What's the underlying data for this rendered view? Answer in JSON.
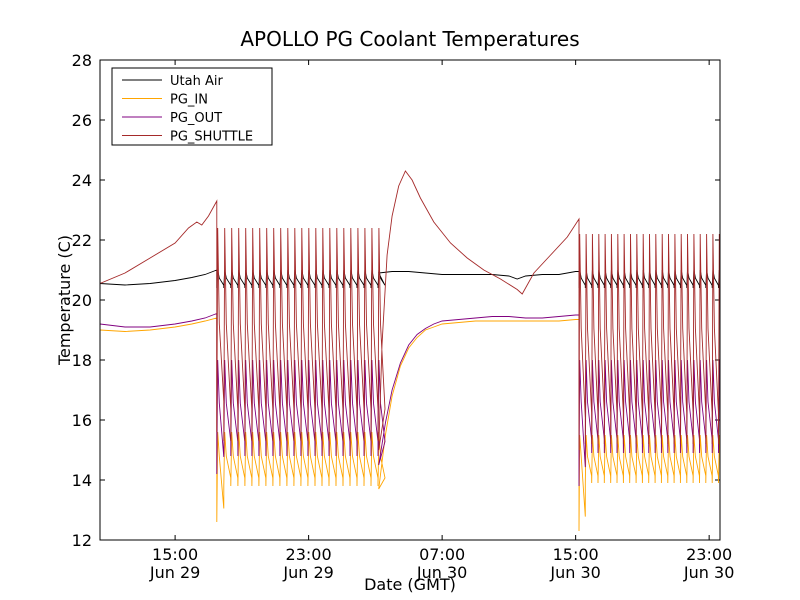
{
  "chart_data": {
    "type": "line",
    "title": "APOLLO PG Coolant Temperatures",
    "xlabel": "Date (GMT)",
    "ylabel": "Temperature (C)",
    "ylim": [
      12,
      28
    ],
    "yticks": [
      12,
      14,
      16,
      18,
      20,
      22,
      24,
      26,
      28
    ],
    "xlim_hours": [
      10.5,
      47.65
    ],
    "xticks": [
      {
        "hour": 15,
        "time": "15:00",
        "date": "Jun 29"
      },
      {
        "hour": 23,
        "time": "23:00",
        "date": "Jun 29"
      },
      {
        "hour": 31,
        "time": "07:00",
        "date": "Jun 30"
      },
      {
        "hour": 39,
        "time": "15:00",
        "date": "Jun 30"
      },
      {
        "hour": 47,
        "time": "23:00",
        "date": "Jun 30"
      }
    ],
    "legend_position": "top-left",
    "series": [
      {
        "name": "Utah Air",
        "color": "#000000",
        "points": [
          [
            10.5,
            20.55
          ],
          [
            12.0,
            20.5
          ],
          [
            13.5,
            20.55
          ],
          [
            15.0,
            20.65
          ],
          [
            16.0,
            20.75
          ],
          [
            16.8,
            20.85
          ],
          [
            17.5,
            21.0
          ]
        ]
      },
      {
        "name": "PG_IN",
        "color": "#ffa500",
        "points": [
          [
            10.5,
            19.0
          ],
          [
            12.0,
            18.95
          ],
          [
            13.5,
            19.0
          ],
          [
            15.0,
            19.1
          ],
          [
            16.0,
            19.2
          ],
          [
            16.8,
            19.3
          ],
          [
            17.5,
            19.4
          ]
        ]
      },
      {
        "name": "PG_OUT",
        "color": "#800080",
        "points": [
          [
            10.5,
            19.2
          ],
          [
            12.0,
            19.1
          ],
          [
            13.5,
            19.1
          ],
          [
            15.0,
            19.2
          ],
          [
            16.0,
            19.3
          ],
          [
            16.8,
            19.4
          ],
          [
            17.5,
            19.55
          ]
        ]
      },
      {
        "name": "PG_SHUTTLE",
        "color": "#a52a2a",
        "points": [
          [
            10.5,
            20.55
          ],
          [
            12.0,
            20.9
          ],
          [
            13.5,
            21.4
          ],
          [
            15.0,
            21.9
          ],
          [
            15.8,
            22.4
          ],
          [
            16.3,
            22.6
          ],
          [
            16.6,
            22.5
          ],
          [
            17.0,
            22.8
          ],
          [
            17.5,
            23.3
          ]
        ]
      }
    ],
    "series_segments": {
      "Utah Air": {
        "cycling_1": {
          "start": 17.5,
          "end": 27.2,
          "period": 0.42,
          "low": 20.4,
          "high": 21.0
        },
        "steady": [
          [
            27.2,
            20.9
          ],
          [
            28.0,
            20.95
          ],
          [
            29.0,
            20.95
          ],
          [
            30.0,
            20.9
          ],
          [
            31.0,
            20.85
          ],
          [
            32.0,
            20.85
          ],
          [
            33.0,
            20.85
          ],
          [
            34.0,
            20.85
          ],
          [
            35.0,
            20.8
          ],
          [
            35.5,
            20.7
          ],
          [
            36.0,
            20.8
          ],
          [
            37.0,
            20.85
          ],
          [
            38.0,
            20.85
          ],
          [
            39.0,
            20.95
          ],
          [
            39.2,
            20.95
          ]
        ],
        "cycling_2": {
          "start": 39.2,
          "end": 47.65,
          "period": 0.38,
          "low": 20.4,
          "high": 21.0
        }
      },
      "PG_IN": {
        "cycling_1": {
          "start": 17.5,
          "end": 27.2,
          "period": 0.42,
          "low": 13.8,
          "high": 15.6,
          "first_low": 12.6
        },
        "recovery": [
          [
            27.2,
            13.7
          ],
          [
            27.6,
            15.5
          ],
          [
            28.0,
            16.8
          ],
          [
            28.5,
            17.8
          ],
          [
            29.0,
            18.4
          ],
          [
            29.5,
            18.75
          ],
          [
            30.0,
            19.0
          ],
          [
            30.5,
            19.1
          ],
          [
            31.0,
            19.2
          ],
          [
            32.0,
            19.25
          ],
          [
            33.0,
            19.3
          ],
          [
            34.0,
            19.3
          ],
          [
            35.0,
            19.3
          ],
          [
            36.0,
            19.3
          ],
          [
            37.0,
            19.3
          ],
          [
            38.0,
            19.3
          ],
          [
            39.0,
            19.35
          ],
          [
            39.2,
            19.35
          ]
        ],
        "cycling_2": {
          "start": 39.2,
          "end": 47.65,
          "period": 0.38,
          "low": 13.9,
          "high": 15.5,
          "first_low": 12.3
        }
      },
      "PG_OUT": {
        "cycling_1": {
          "start": 17.5,
          "end": 27.2,
          "period": 0.42,
          "low": 14.8,
          "high": 18.0,
          "first_low": 14.2
        },
        "recovery": [
          [
            27.2,
            14.5
          ],
          [
            27.6,
            15.9
          ],
          [
            28.0,
            17.0
          ],
          [
            28.5,
            17.9
          ],
          [
            29.0,
            18.5
          ],
          [
            29.5,
            18.85
          ],
          [
            30.0,
            19.05
          ],
          [
            30.5,
            19.2
          ],
          [
            31.0,
            19.3
          ],
          [
            32.0,
            19.35
          ],
          [
            33.0,
            19.4
          ],
          [
            34.0,
            19.45
          ],
          [
            35.0,
            19.45
          ],
          [
            36.0,
            19.4
          ],
          [
            37.0,
            19.4
          ],
          [
            38.0,
            19.45
          ],
          [
            39.0,
            19.5
          ],
          [
            39.2,
            19.5
          ]
        ],
        "cycling_2": {
          "start": 39.2,
          "end": 47.65,
          "period": 0.38,
          "low": 14.9,
          "high": 18.0,
          "first_low": 13.8
        }
      },
      "PG_SHUTTLE": {
        "cycling_1": {
          "start": 17.5,
          "end": 27.2,
          "period": 0.42,
          "low": 15.3,
          "high": 22.4,
          "first_low": 15.6
        },
        "peak_decay": [
          [
            27.2,
            15.0
          ],
          [
            27.4,
            18.5
          ],
          [
            27.7,
            21.5
          ],
          [
            28.0,
            22.8
          ],
          [
            28.4,
            23.8
          ],
          [
            28.8,
            24.3
          ],
          [
            29.2,
            24.0
          ],
          [
            29.7,
            23.4
          ],
          [
            30.5,
            22.6
          ],
          [
            31.5,
            21.9
          ],
          [
            32.5,
            21.4
          ],
          [
            33.5,
            21.0
          ],
          [
            34.5,
            20.7
          ],
          [
            35.5,
            20.35
          ],
          [
            35.8,
            20.2
          ],
          [
            36.5,
            20.9
          ],
          [
            37.5,
            21.5
          ],
          [
            38.5,
            22.1
          ],
          [
            39.2,
            22.7
          ]
        ],
        "cycling_2": {
          "start": 39.2,
          "end": 47.65,
          "period": 0.38,
          "low": 15.2,
          "high": 22.2,
          "first_low": 15.0
        }
      }
    }
  }
}
